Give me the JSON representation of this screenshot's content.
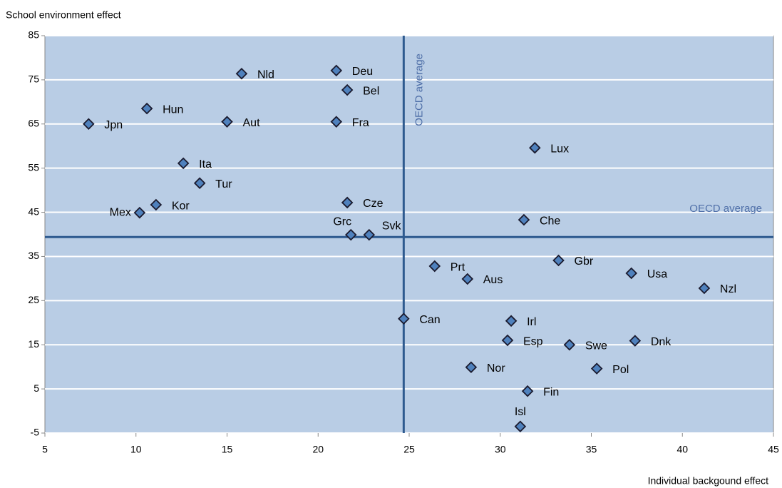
{
  "chart_data": {
    "type": "scatter",
    "x_label": "Individual backgound effect",
    "y_label": "School environment effect",
    "labels": [
      "Jpn",
      "Hun",
      "Nld",
      "Aut",
      "Deu",
      "Bel",
      "Fra",
      "Ita",
      "Tur",
      "Kor",
      "Mex",
      "Cze",
      "Grc",
      "Svk",
      "Lux",
      "Che",
      "Gbr",
      "Usa",
      "Nzl",
      "Prt",
      "Aus",
      "Can",
      "Irl",
      "Esp",
      "Swe",
      "Dnk",
      "Nor",
      "Pol",
      "Fin",
      "Isl"
    ],
    "x": [
      7.4,
      10.6,
      15.8,
      15.0,
      21.0,
      21.6,
      21.0,
      12.6,
      13.5,
      11.1,
      10.2,
      21.6,
      21.8,
      22.8,
      31.9,
      31.3,
      33.2,
      37.2,
      41.2,
      26.4,
      28.2,
      24.7,
      30.6,
      30.4,
      33.8,
      37.4,
      28.4,
      35.3,
      31.5,
      31.1
    ],
    "values": [
      65.0,
      68.5,
      76.4,
      65.5,
      77.1,
      72.7,
      65.5,
      56.1,
      51.6,
      46.7,
      44.9,
      47.2,
      39.9,
      39.9,
      59.6,
      43.3,
      34.1,
      31.2,
      27.8,
      32.8,
      29.9,
      20.9,
      20.4,
      16.0,
      15.0,
      15.9,
      9.9,
      9.6,
      4.5,
      -3.5
    ],
    "color": "#4f81bd",
    "xlim": [
      5,
      45
    ],
    "xticks": [
      5,
      10,
      15,
      20,
      25,
      30,
      35,
      40,
      45
    ],
    "ylim": [
      -5,
      85
    ],
    "yticks": [
      -5,
      5,
      15,
      25,
      35,
      45,
      55,
      65,
      75,
      85
    ],
    "grid": true,
    "reference_lines": [
      {
        "axis": "x",
        "value": 24.7,
        "label": "OECD average"
      },
      {
        "axis": "y",
        "value": 39.4,
        "label": "OECD average"
      }
    ]
  }
}
